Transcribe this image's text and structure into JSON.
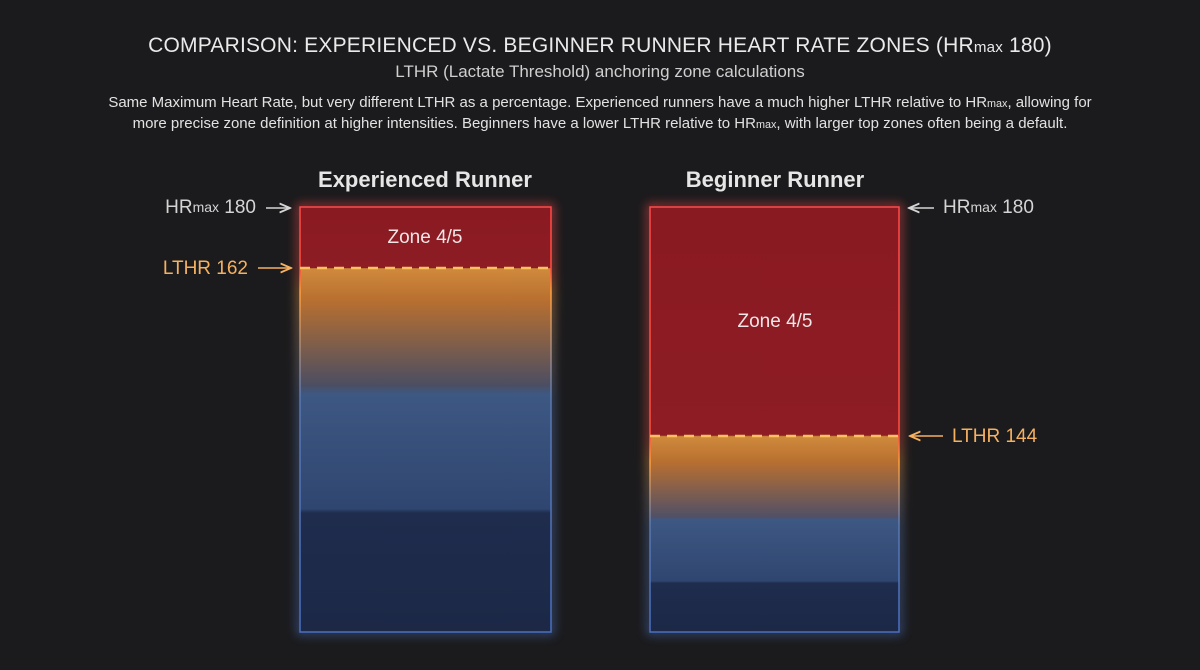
{
  "header": {
    "title": [
      "COMPARISON: EXPERIENCED VS. BEGINNER RUNNER HEART RATE ZONES (HR",
      "max",
      " 180)"
    ],
    "subtitle": "LTHR (Lactate Threshold) anchoring zone calculations",
    "description": [
      "Same Maximum Heart Rate, but very different LTHR as a percentage. Experienced runners have a much higher LTHR relative to HR",
      "max",
      ", allowing for more precise zone definition at higher intensities. Beginners have a lower LTHR relative to HR",
      "max",
      ", with larger top zones often being a default."
    ]
  },
  "panels": [
    {
      "title": "Experienced Runner",
      "hrmax": [
        "HR",
        "max",
        " 180"
      ],
      "zone": "Zone 4/5",
      "lthr": "LTHR 162"
    },
    {
      "title": "Beginner Runner",
      "hrmax": [
        "HR",
        "max",
        " 180"
      ],
      "zone": "Zone 4/5",
      "lthr": "LTHR 144"
    }
  ]
}
